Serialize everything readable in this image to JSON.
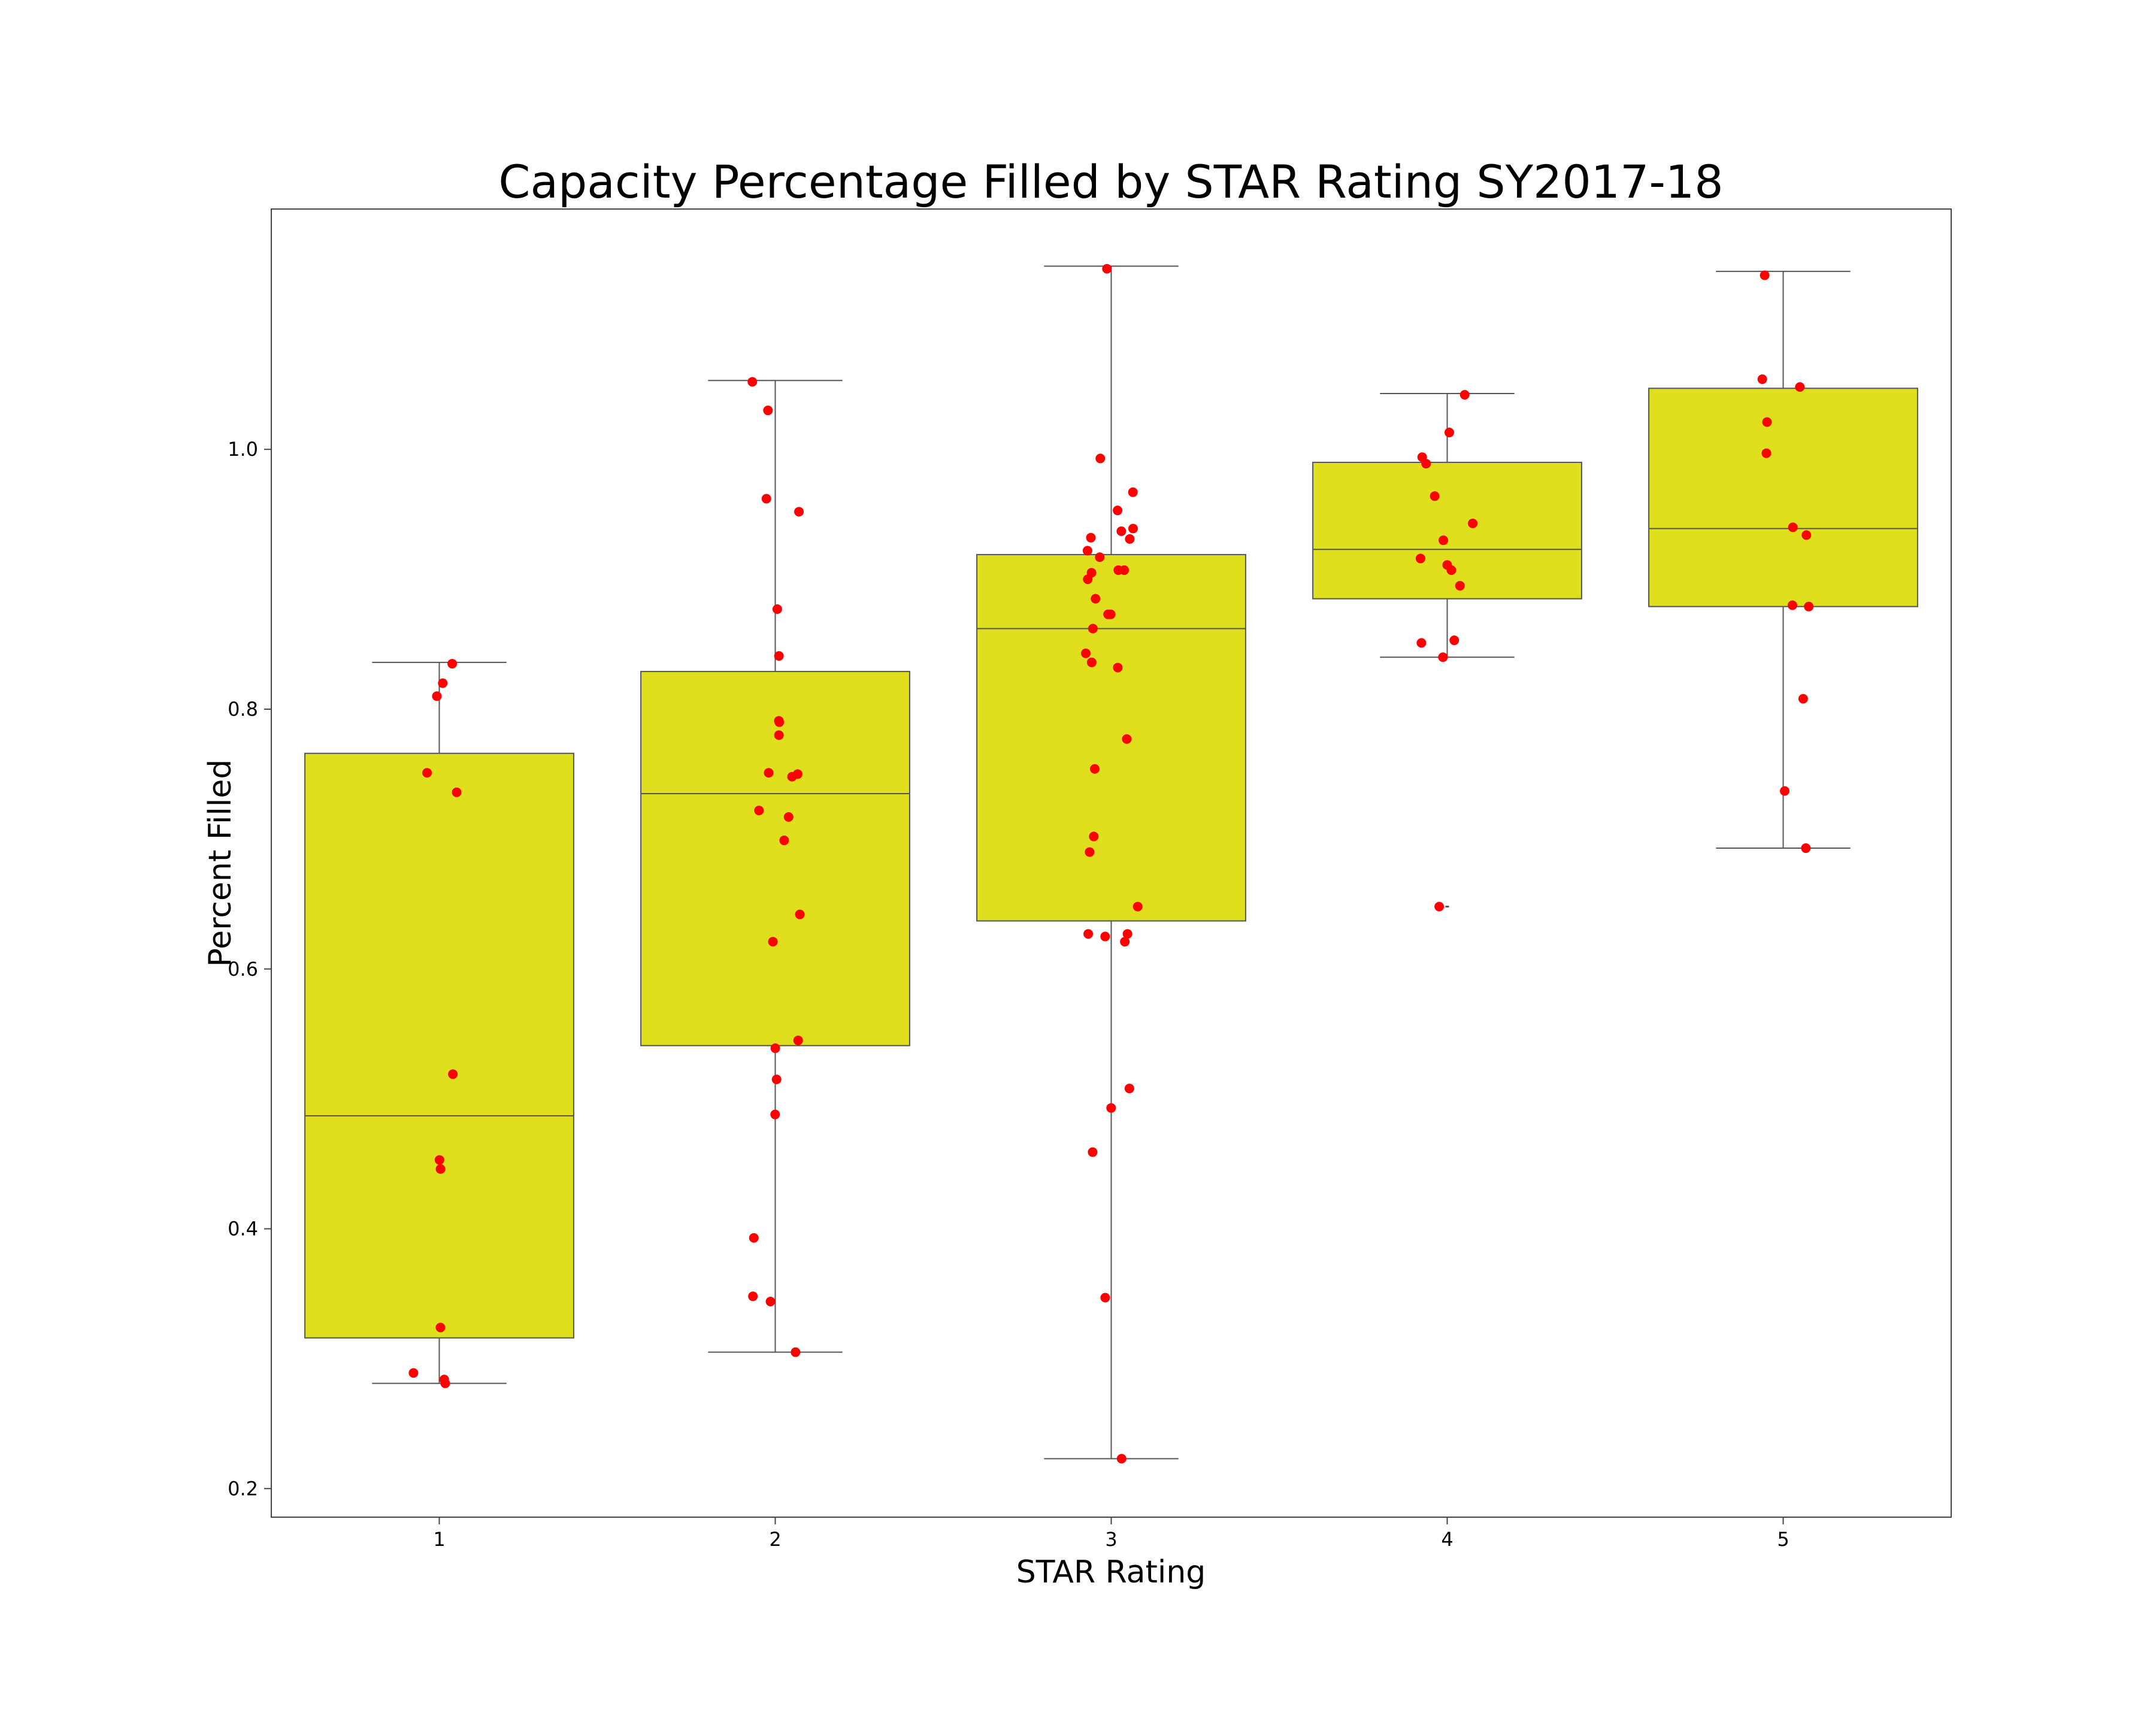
{
  "colors": {
    "box_fill": "#dfdf1d",
    "box_edge": "#555555",
    "point": "#ff0000",
    "axes": "#444444"
  },
  "chart_data": {
    "type": "box",
    "title": "Capacity Percentage Filled by STAR Rating SY2017-18",
    "xlabel": "STAR Rating",
    "ylabel": "Percent Filled",
    "categories": [
      "1",
      "2",
      "3",
      "4",
      "5"
    ],
    "y_ticks": [
      "0.2",
      "0.4",
      "0.6",
      "0.8",
      "1.0"
    ],
    "ylim": [
      0.178,
      1.185
    ],
    "grid": false,
    "legend": "none",
    "boxes": [
      {
        "category": "1",
        "whisker_low": 0.281,
        "q1": 0.316,
        "median": 0.487,
        "q3": 0.766,
        "whisker_high": 0.836,
        "outliers": []
      },
      {
        "category": "2",
        "whisker_low": 0.305,
        "q1": 0.541,
        "median": 0.735,
        "q3": 0.829,
        "whisker_high": 1.053,
        "outliers": []
      },
      {
        "category": "3",
        "whisker_low": 0.223,
        "q1": 0.637,
        "median": 0.862,
        "q3": 0.919,
        "whisker_high": 1.141,
        "outliers": []
      },
      {
        "category": "4",
        "whisker_low": 0.84,
        "q1": 0.885,
        "median": 0.923,
        "q3": 0.99,
        "whisker_high": 1.043,
        "outliers": [
          0.648
        ]
      },
      {
        "category": "5",
        "whisker_low": 0.693,
        "q1": 0.879,
        "median": 0.939,
        "q3": 1.047,
        "whisker_high": 1.137,
        "outliers": []
      }
    ],
    "points": [
      {
        "category": "1",
        "values": [
          0.835,
          0.82,
          0.81,
          0.751,
          0.736,
          0.519,
          0.453,
          0.446,
          0.324,
          0.289,
          0.284,
          0.281
        ]
      },
      {
        "category": "2",
        "values": [
          1.052,
          1.03,
          0.962,
          0.952,
          0.877,
          0.841,
          0.791,
          0.79,
          0.78,
          0.751,
          0.75,
          0.748,
          0.722,
          0.717,
          0.699,
          0.642,
          0.621,
          0.545,
          0.539,
          0.515,
          0.488,
          0.393,
          0.348,
          0.344,
          0.305
        ]
      },
      {
        "category": "3",
        "values": [
          1.139,
          0.993,
          0.967,
          0.953,
          0.939,
          0.937,
          0.932,
          0.931,
          0.922,
          0.917,
          0.907,
          0.907,
          0.905,
          0.9,
          0.885,
          0.873,
          0.873,
          0.862,
          0.843,
          0.836,
          0.832,
          0.777,
          0.754,
          0.702,
          0.69,
          0.648,
          0.627,
          0.627,
          0.625,
          0.621,
          0.508,
          0.493,
          0.459,
          0.347,
          0.223
        ]
      },
      {
        "category": "4",
        "values": [
          1.042,
          1.013,
          0.994,
          0.989,
          0.964,
          0.943,
          0.93,
          0.916,
          0.911,
          0.907,
          0.895,
          0.853,
          0.851,
          0.84,
          0.648
        ]
      },
      {
        "category": "5",
        "values": [
          1.134,
          1.054,
          1.048,
          1.021,
          0.997,
          0.94,
          0.934,
          0.88,
          0.879,
          0.808,
          0.737,
          0.693
        ]
      }
    ]
  }
}
